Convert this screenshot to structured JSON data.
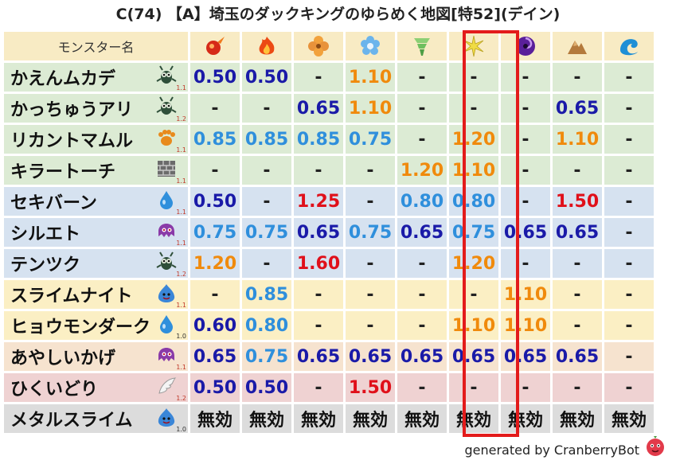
{
  "title": "C(74) 【A】埼玉のダックキングのゆらめく地図[特52](デイン)",
  "header": {
    "name_col": "モンスター名"
  },
  "elements": [
    {
      "name": "fire-small-icon",
      "color": "#e0331c"
    },
    {
      "name": "fire-large-icon",
      "color": "#f05a1a"
    },
    {
      "name": "earth-clover-icon",
      "color": "#f2a23c"
    },
    {
      "name": "ice-flower-icon",
      "color": "#5aa8e6"
    },
    {
      "name": "wind-tornado-icon",
      "color": "#7cc36a"
    },
    {
      "name": "light-star-icon",
      "color": "#e8d43a"
    },
    {
      "name": "dark-swirl-icon",
      "color": "#6a2aa8"
    },
    {
      "name": "rock-mountain-icon",
      "color": "#b07a3c"
    },
    {
      "name": "water-wave-icon",
      "color": "#1f8fd6"
    }
  ],
  "rows": [
    {
      "name": "かえんムカデ",
      "icon": "insect-icon",
      "ver": "1.1",
      "bg": "green",
      "cells": [
        [
          "0.50",
          "blue"
        ],
        [
          "0.50",
          "blue"
        ],
        [
          "-",
          "dash"
        ],
        [
          "1.10",
          "orange"
        ],
        [
          "-",
          "dash"
        ],
        [
          "-",
          "dash"
        ],
        [
          "-",
          "dash"
        ],
        [
          "-",
          "dash"
        ],
        [
          "-",
          "dash"
        ]
      ]
    },
    {
      "name": "かっちゅうアリ",
      "icon": "insect-icon",
      "ver": "1.2",
      "bg": "green",
      "cells": [
        [
          "-",
          "dash"
        ],
        [
          "-",
          "dash"
        ],
        [
          "0.65",
          "blue"
        ],
        [
          "1.10",
          "orange"
        ],
        [
          "-",
          "dash"
        ],
        [
          "-",
          "dash"
        ],
        [
          "-",
          "dash"
        ],
        [
          "0.65",
          "blue"
        ],
        [
          "-",
          "dash"
        ]
      ]
    },
    {
      "name": "リカントマムル",
      "icon": "paw-icon",
      "ver": "1.1",
      "bg": "green",
      "cells": [
        [
          "0.85",
          "lblue"
        ],
        [
          "0.85",
          "lblue"
        ],
        [
          "0.85",
          "lblue"
        ],
        [
          "0.75",
          "lblue"
        ],
        [
          "-",
          "dash"
        ],
        [
          "1.20",
          "orange"
        ],
        [
          "-",
          "dash"
        ],
        [
          "1.10",
          "orange"
        ],
        [
          "-",
          "dash"
        ]
      ]
    },
    {
      "name": "キラートーチ",
      "icon": "brick-icon",
      "ver": "1.1",
      "bg": "green",
      "cells": [
        [
          "-",
          "dash"
        ],
        [
          "-",
          "dash"
        ],
        [
          "-",
          "dash"
        ],
        [
          "-",
          "dash"
        ],
        [
          "1.20",
          "orange"
        ],
        [
          "1.10",
          "orange"
        ],
        [
          "-",
          "dash"
        ],
        [
          "-",
          "dash"
        ],
        [
          "-",
          "dash"
        ]
      ]
    },
    {
      "name": "セキバーン",
      "icon": "drop-icon",
      "ver": "1.1",
      "bg": "blue",
      "cells": [
        [
          "0.50",
          "blue"
        ],
        [
          "-",
          "dash"
        ],
        [
          "1.25",
          "red"
        ],
        [
          "-",
          "dash"
        ],
        [
          "0.80",
          "lblue"
        ],
        [
          "0.80",
          "lblue"
        ],
        [
          "-",
          "dash"
        ],
        [
          "1.50",
          "red"
        ],
        [
          "-",
          "dash"
        ]
      ]
    },
    {
      "name": "シルエト",
      "icon": "ghost-icon",
      "ver": "1.1",
      "bg": "blue",
      "cells": [
        [
          "0.75",
          "lblue"
        ],
        [
          "0.75",
          "lblue"
        ],
        [
          "0.65",
          "blue"
        ],
        [
          "0.75",
          "lblue"
        ],
        [
          "0.65",
          "blue"
        ],
        [
          "0.75",
          "lblue"
        ],
        [
          "0.65",
          "blue"
        ],
        [
          "0.65",
          "blue"
        ],
        [
          "-",
          "dash"
        ]
      ]
    },
    {
      "name": "テンツク",
      "icon": "insect-icon",
      "ver": "1.2",
      "bg": "blue",
      "cells": [
        [
          "1.20",
          "orange"
        ],
        [
          "-",
          "dash"
        ],
        [
          "1.60",
          "red"
        ],
        [
          "-",
          "dash"
        ],
        [
          "-",
          "dash"
        ],
        [
          "1.20",
          "orange"
        ],
        [
          "-",
          "dash"
        ],
        [
          "-",
          "dash"
        ],
        [
          "-",
          "dash"
        ]
      ]
    },
    {
      "name": "スライムナイト",
      "icon": "slime-icon",
      "ver": "1.1",
      "bg": "yellow",
      "cells": [
        [
          "-",
          "dash"
        ],
        [
          "0.85",
          "lblue"
        ],
        [
          "-",
          "dash"
        ],
        [
          "-",
          "dash"
        ],
        [
          "-",
          "dash"
        ],
        [
          "-",
          "dash"
        ],
        [
          "1.10",
          "orange"
        ],
        [
          "-",
          "dash"
        ],
        [
          "-",
          "dash"
        ]
      ]
    },
    {
      "name": "ヒョウモンダーク",
      "icon": "drop-icon",
      "ver": "1.0",
      "bg": "yellow",
      "cells": [
        [
          "0.60",
          "blue"
        ],
        [
          "0.80",
          "lblue"
        ],
        [
          "-",
          "dash"
        ],
        [
          "-",
          "dash"
        ],
        [
          "-",
          "dash"
        ],
        [
          "1.10",
          "orange"
        ],
        [
          "1.10",
          "orange"
        ],
        [
          "-",
          "dash"
        ],
        [
          "-",
          "dash"
        ]
      ]
    },
    {
      "name": "あやしいかげ",
      "icon": "ghost-icon",
      "ver": "1.1",
      "bg": "peach",
      "cells": [
        [
          "0.65",
          "blue"
        ],
        [
          "0.75",
          "lblue"
        ],
        [
          "0.65",
          "blue"
        ],
        [
          "0.65",
          "blue"
        ],
        [
          "0.65",
          "blue"
        ],
        [
          "0.65",
          "blue"
        ],
        [
          "0.65",
          "blue"
        ],
        [
          "0.65",
          "blue"
        ],
        [
          "-",
          "dash"
        ]
      ]
    },
    {
      "name": "ひくいどり",
      "icon": "wing-icon",
      "ver": "1.2",
      "bg": "pink",
      "cells": [
        [
          "0.50",
          "blue"
        ],
        [
          "0.50",
          "blue"
        ],
        [
          "-",
          "dash"
        ],
        [
          "1.50",
          "red"
        ],
        [
          "-",
          "dash"
        ],
        [
          "-",
          "dash"
        ],
        [
          "-",
          "dash"
        ],
        [
          "-",
          "dash"
        ],
        [
          "-",
          "dash"
        ]
      ]
    },
    {
      "name": "メタルスライム",
      "icon": "slime-icon",
      "ver": "1.0",
      "bg": "gray",
      "cells": [
        [
          "無効",
          "none"
        ],
        [
          "無効",
          "none"
        ],
        [
          "無効",
          "none"
        ],
        [
          "無効",
          "none"
        ],
        [
          "無効",
          "none"
        ],
        [
          "無効",
          "none"
        ],
        [
          "無効",
          "none"
        ],
        [
          "無効",
          "none"
        ],
        [
          "無効",
          "none"
        ]
      ]
    }
  ],
  "footer": {
    "text": "generated by CranberryBot",
    "icon": "cranberry-bot-icon"
  }
}
